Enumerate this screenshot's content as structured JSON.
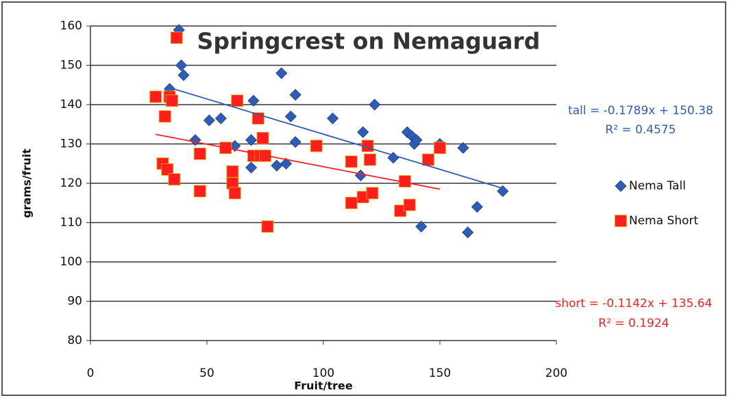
{
  "chart_data": {
    "type": "scatter",
    "title": "Springcrest on Nemaguard",
    "x_label": "Fruit/tree",
    "y_label": "grams/fruit",
    "xlim": [
      0,
      200
    ],
    "xticks": [
      0,
      50,
      100,
      150,
      200
    ],
    "ylim": [
      80,
      160
    ],
    "yticks": [
      80,
      90,
      100,
      110,
      120,
      130,
      140,
      150,
      160
    ],
    "grid": true,
    "legend": "right",
    "series": [
      {
        "name": "Nema Tall",
        "color": "#2e5db8",
        "marker": "diamond",
        "x": [
          38,
          39,
          40,
          34,
          45,
          51,
          56,
          62,
          70,
          69,
          69,
          80,
          82,
          84,
          86,
          88,
          88,
          104,
          116,
          117,
          122,
          130,
          136,
          138,
          139,
          140,
          142,
          150,
          160,
          162,
          166,
          177
        ],
        "values": [
          159,
          150,
          147.5,
          144,
          131,
          136,
          136.5,
          129.5,
          141,
          131,
          124,
          124.5,
          148,
          125,
          137,
          142.5,
          130.5,
          136.5,
          122,
          133,
          140,
          126.5,
          133,
          132,
          130,
          131,
          109,
          130,
          129,
          107.5,
          114,
          118
        ]
      },
      {
        "name": "Nema Short",
        "color": "#ff1e1e",
        "marker": "square",
        "x": [
          28,
          31,
          33,
          32,
          34,
          35,
          36,
          37,
          47,
          47,
          58,
          61,
          61,
          62,
          63,
          70,
          72,
          74,
          73,
          75,
          76,
          97,
          112,
          112,
          117,
          119,
          120,
          121,
          133,
          135,
          137,
          145,
          150
        ],
        "values": [
          142,
          125,
          123.5,
          137,
          142,
          141,
          121,
          157,
          127.5,
          118,
          129,
          123,
          120,
          117.5,
          141,
          127,
          136.5,
          131.5,
          127,
          127,
          109,
          129.5,
          125.5,
          115,
          116.5,
          129.5,
          126,
          117.5,
          113,
          120.5,
          114.5,
          126,
          129
        ]
      }
    ],
    "trendlines": [
      {
        "color": "#2e5db8",
        "slope": -0.1789,
        "intercept": 150.38,
        "x": [
          33,
          177
        ],
        "equation": "tall = -0.1789x + 150.38",
        "r2": "R² = 0.4575"
      },
      {
        "color": "#ff1e1e",
        "slope": -0.1142,
        "intercept": 135.64,
        "x": [
          28,
          150
        ],
        "equation": "short = -0.1142x + 135.64",
        "r2": "R² = 0.1924"
      }
    ]
  }
}
